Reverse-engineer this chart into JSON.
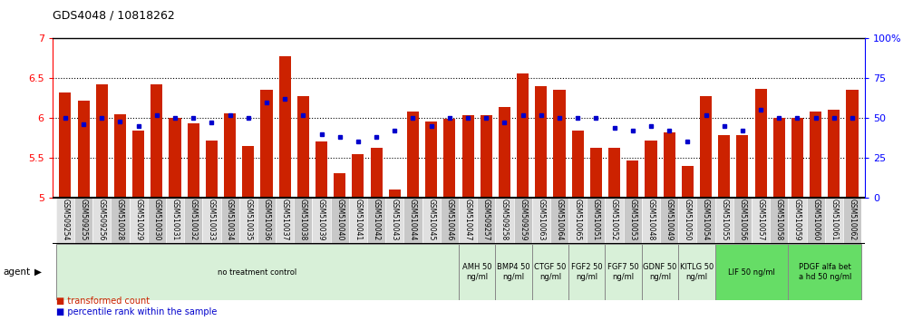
{
  "title": "GDS4048 / 10818262",
  "samples": [
    "GSM509254",
    "GSM509255",
    "GSM509256",
    "GSM510028",
    "GSM510029",
    "GSM510030",
    "GSM510031",
    "GSM510032",
    "GSM510033",
    "GSM510034",
    "GSM510035",
    "GSM510036",
    "GSM510037",
    "GSM510038",
    "GSM510039",
    "GSM510040",
    "GSM510041",
    "GSM510042",
    "GSM510043",
    "GSM510044",
    "GSM510045",
    "GSM510046",
    "GSM510047",
    "GSM509257",
    "GSM509258",
    "GSM509259",
    "GSM510063",
    "GSM510064",
    "GSM510065",
    "GSM510051",
    "GSM510052",
    "GSM510053",
    "GSM510048",
    "GSM510049",
    "GSM510050",
    "GSM510054",
    "GSM510055",
    "GSM510056",
    "GSM510057",
    "GSM510058",
    "GSM510059",
    "GSM510060",
    "GSM510061",
    "GSM510062"
  ],
  "bar_values": [
    6.32,
    6.22,
    6.42,
    6.05,
    5.84,
    6.42,
    6.0,
    5.93,
    5.72,
    6.06,
    5.65,
    6.35,
    6.78,
    6.28,
    5.7,
    5.3,
    5.54,
    5.62,
    5.1,
    6.08,
    5.95,
    5.99,
    6.04,
    6.04,
    6.14,
    6.56,
    6.4,
    6.35,
    5.84,
    5.62,
    5.63,
    5.47,
    5.72,
    5.82,
    5.4,
    6.28,
    5.78,
    5.78,
    6.37,
    6.0,
    6.0,
    6.08,
    6.1,
    6.35
  ],
  "percentile_values": [
    50,
    46,
    50,
    48,
    45,
    52,
    50,
    50,
    47,
    52,
    50,
    60,
    62,
    52,
    40,
    38,
    35,
    38,
    42,
    50,
    45,
    50,
    50,
    50,
    47,
    52,
    52,
    50,
    50,
    50,
    44,
    42,
    45,
    42,
    35,
    52,
    45,
    42,
    55,
    50,
    50,
    50,
    50,
    50
  ],
  "ylim_left": [
    5.0,
    7.0
  ],
  "ylim_right": [
    0,
    100
  ],
  "yticks_left": [
    5.0,
    5.5,
    6.0,
    6.5,
    7.0
  ],
  "yticks_right": [
    0,
    25,
    50,
    75,
    100
  ],
  "hlines": [
    5.5,
    6.0,
    6.5
  ],
  "bar_color": "#cc2200",
  "dot_color": "#0000cc",
  "agent_groups": [
    {
      "label": "no treatment control",
      "start": 0,
      "end": 22,
      "color": "#d8f0d8",
      "single_line": true
    },
    {
      "label": "AMH 50\nng/ml",
      "start": 22,
      "end": 24,
      "color": "#d8f0d8",
      "single_line": false
    },
    {
      "label": "BMP4 50\nng/ml",
      "start": 24,
      "end": 26,
      "color": "#d8f0d8",
      "single_line": false
    },
    {
      "label": "CTGF 50\nng/ml",
      "start": 26,
      "end": 28,
      "color": "#d8f0d8",
      "single_line": false
    },
    {
      "label": "FGF2 50\nng/ml",
      "start": 28,
      "end": 30,
      "color": "#d8f0d8",
      "single_line": false
    },
    {
      "label": "FGF7 50\nng/ml",
      "start": 30,
      "end": 32,
      "color": "#d8f0d8",
      "single_line": false
    },
    {
      "label": "GDNF 50\nng/ml",
      "start": 32,
      "end": 34,
      "color": "#d8f0d8",
      "single_line": false
    },
    {
      "label": "KITLG 50\nng/ml",
      "start": 34,
      "end": 36,
      "color": "#d8f0d8",
      "single_line": false
    },
    {
      "label": "LIF 50 ng/ml",
      "start": 36,
      "end": 40,
      "color": "#66dd66",
      "single_line": true
    },
    {
      "label": "PDGF alfa bet\na hd 50 ng/ml",
      "start": 40,
      "end": 44,
      "color": "#66dd66",
      "single_line": false
    }
  ],
  "legend_bar_label": "transformed count",
  "legend_dot_label": "percentile rank within the sample",
  "bar_bottom": 5.0
}
